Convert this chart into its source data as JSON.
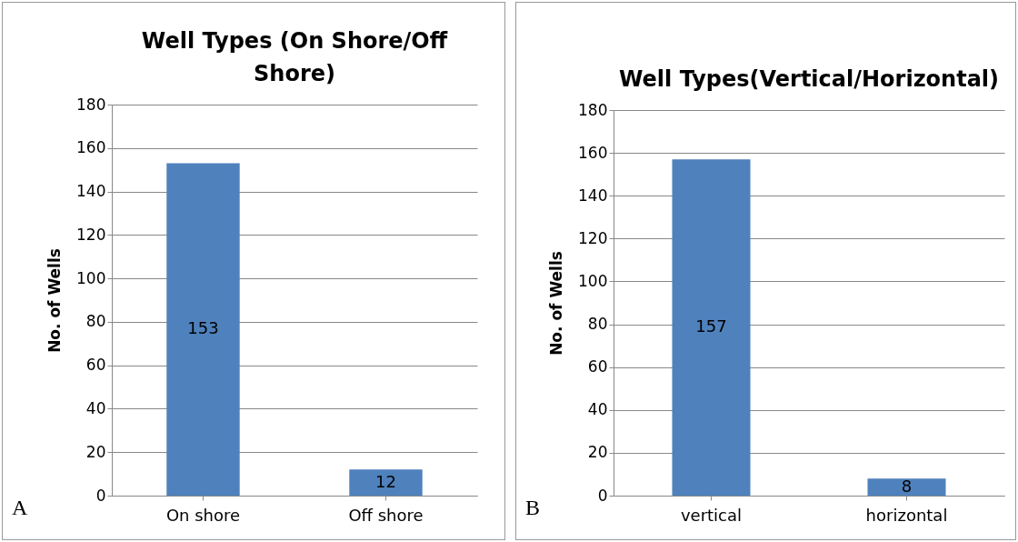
{
  "chart_data": [
    {
      "type": "bar",
      "title": "Well Types (On Shore/Off Shore)",
      "ylabel": "No. of Wells",
      "categories": [
        "On shore",
        "Off shore"
      ],
      "values": [
        153,
        12
      ],
      "color": "#4f81bd",
      "ylim": [
        0,
        180
      ],
      "yticks": [
        0,
        20,
        40,
        60,
        80,
        100,
        120,
        140,
        160,
        180
      ],
      "grid": "y",
      "data_labels": true,
      "annotations": [
        "A"
      ]
    },
    {
      "type": "bar",
      "title": "Well Types(Vertical/Horizontal)",
      "ylabel": "No. of Wells",
      "categories": [
        "vertical",
        "horizontal"
      ],
      "values": [
        157,
        8
      ],
      "color": "#4f81bd",
      "ylim": [
        0,
        180
      ],
      "yticks": [
        0,
        20,
        40,
        60,
        80,
        100,
        120,
        140,
        160,
        180
      ],
      "grid": "y",
      "data_labels": true,
      "annotations": [
        "B"
      ]
    }
  ]
}
